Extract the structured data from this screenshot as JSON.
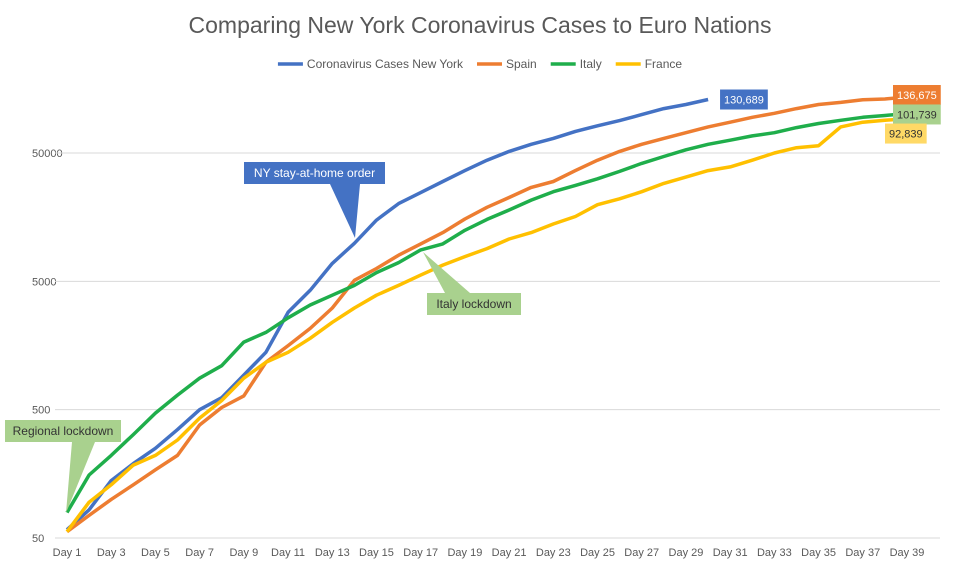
{
  "chart_data": {
    "type": "line",
    "title": "Comparing New York Coronavirus Cases to Euro Nations",
    "categories": [
      "Day 1",
      null,
      "Day 3",
      null,
      "Day 5",
      null,
      "Day 7",
      null,
      "Day 9",
      null,
      "Day 11",
      null,
      "Day 13",
      null,
      "Day 15",
      null,
      "Day 17",
      null,
      "Day 19",
      null,
      "Day 21",
      null,
      "Day 23",
      null,
      "Day 25",
      null,
      "Day 27",
      null,
      "Day 29",
      null,
      "Day 31",
      null,
      "Day 33",
      null,
      "Day 35",
      null,
      "Day 37",
      null,
      "Day 39"
    ],
    "series": [
      {
        "name": "Coronavirus Cases New York",
        "color": "#4472c4",
        "values": [
          58,
          83,
          140,
          190,
          250,
          350,
          500,
          620,
          930,
          1400,
          2870,
          4260,
          6900,
          9900,
          15000,
          20200,
          24600,
          30000,
          36500,
          44000,
          51500,
          58500,
          65000,
          73800,
          81600,
          89500,
          99700,
          111000,
          119500,
          130689,
          null,
          null,
          null,
          null,
          null,
          null,
          null,
          null,
          null
        ],
        "value_labels": [
          null,
          null,
          null,
          null,
          null,
          null,
          null,
          null,
          null,
          null,
          null,
          null,
          null,
          null,
          null,
          null,
          null,
          null,
          null,
          null,
          null,
          null,
          null,
          null,
          null,
          null,
          null,
          null,
          null,
          "130,689",
          null,
          null,
          null,
          null,
          null,
          null,
          null,
          null,
          null
        ]
      },
      {
        "name": "Spain",
        "color": "#ed7d31",
        "values": [
          56,
          75,
          100,
          130,
          170,
          220,
          380,
          520,
          640,
          1170,
          1580,
          2150,
          3100,
          5100,
          6300,
          8000,
          9800,
          12000,
          15300,
          18900,
          22500,
          27000,
          30000,
          36500,
          44000,
          51500,
          58500,
          65000,
          72000,
          80000,
          87000,
          95000,
          102000,
          111000,
          119500,
          124000,
          130000,
          132000,
          136675
        ],
        "value_labels": [
          null,
          null,
          null,
          null,
          null,
          null,
          null,
          null,
          null,
          null,
          null,
          null,
          null,
          null,
          null,
          null,
          null,
          null,
          null,
          null,
          null,
          null,
          null,
          null,
          null,
          null,
          null,
          null,
          null,
          null,
          null,
          null,
          null,
          null,
          null,
          null,
          null,
          null,
          "136,675"
        ]
      },
      {
        "name": "Italy",
        "color": "#1fae4b",
        "values": [
          79,
          155,
          220,
          320,
          470,
          650,
          880,
          1100,
          1680,
          2000,
          2600,
          3270,
          3900,
          4650,
          5850,
          7000,
          8800,
          9800,
          12500,
          15200,
          18000,
          21500,
          25000,
          28000,
          31500,
          36000,
          41500,
          47000,
          53000,
          58500,
          63000,
          68000,
          72000,
          79000,
          85000,
          90000,
          95000,
          98000,
          101739
        ],
        "value_labels": [
          null,
          null,
          null,
          null,
          null,
          null,
          null,
          null,
          null,
          null,
          null,
          null,
          null,
          null,
          null,
          null,
          null,
          null,
          null,
          null,
          null,
          null,
          null,
          null,
          null,
          null,
          null,
          null,
          null,
          null,
          null,
          null,
          null,
          null,
          null,
          null,
          null,
          null,
          "101,739"
        ]
      },
      {
        "name": "France",
        "color": "#ffc000",
        "values": [
          56,
          95,
          130,
          185,
          220,
          290,
          430,
          590,
          880,
          1170,
          1400,
          1800,
          2400,
          3100,
          3900,
          4650,
          5600,
          6700,
          7800,
          9000,
          10700,
          12000,
          14000,
          16000,
          19800,
          22000,
          25000,
          29000,
          32500,
          36500,
          39000,
          44000,
          50000,
          55000,
          57000,
          80000,
          87000,
          90000,
          92839
        ],
        "value_labels": [
          null,
          null,
          null,
          null,
          null,
          null,
          null,
          null,
          null,
          null,
          null,
          null,
          null,
          null,
          null,
          null,
          null,
          null,
          null,
          null,
          null,
          null,
          null,
          null,
          null,
          null,
          null,
          null,
          null,
          null,
          null,
          null,
          null,
          null,
          null,
          null,
          null,
          null,
          "92,839"
        ]
      }
    ],
    "ylim": [
      50,
      155000
    ],
    "yticks": [
      50,
      500,
      5000,
      50000
    ],
    "log_scale": true,
    "grid": true,
    "legend": "top",
    "annotations": [
      "NY stay-at-home order",
      "Italy lockdown",
      "Regional lockdown"
    ]
  }
}
